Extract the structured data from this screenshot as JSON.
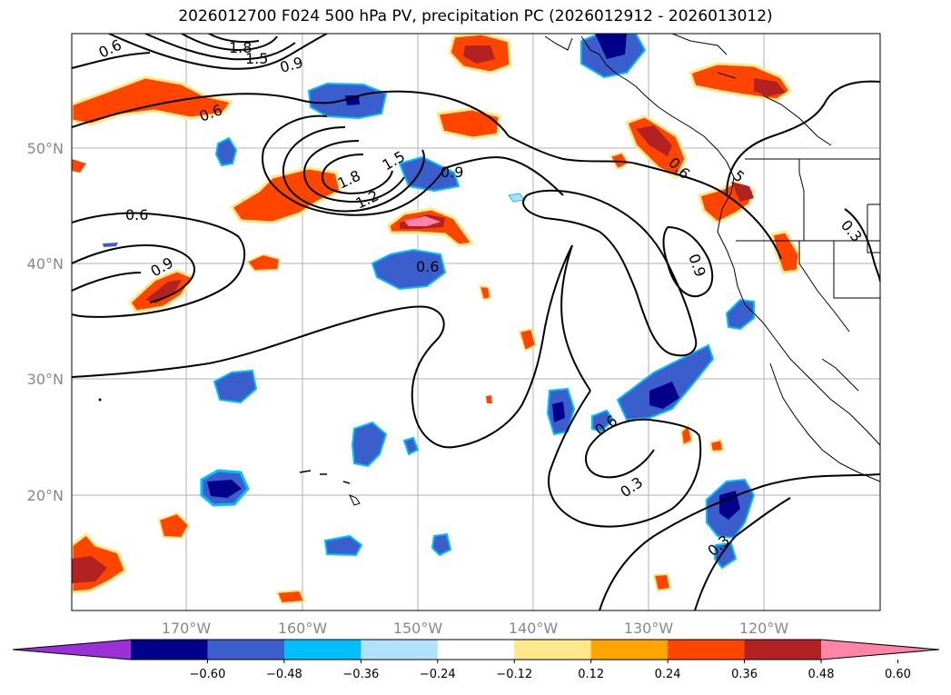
{
  "title": "2026012700 F024 500 hPa PV, precipitation PC (2026012912 - 2026013012)",
  "lat_labels": [
    "50°N",
    "40°N",
    "30°N",
    "20°N"
  ],
  "lon_labels": [
    "170°W",
    "160°W",
    "150°W",
    "140°W",
    "130°W",
    "120°W"
  ],
  "colorbar": {
    "ticks": [
      "−0.60",
      "−0.48",
      "−0.36",
      "−0.24",
      "−0.12",
      "0.12",
      "0.24",
      "0.36",
      "0.48",
      "0.60"
    ],
    "colors": [
      "#9b30d9",
      "#00008b",
      "#3a5fcd",
      "#00bfff",
      "#b0e2ff",
      "#ffffff",
      "#ffe88c",
      "#ffa500",
      "#ff4500",
      "#b22222",
      "#ff85a8"
    ]
  },
  "contour_labels": [
    {
      "text": "0.6"
    },
    {
      "text": "1.8"
    },
    {
      "text": "1.5"
    },
    {
      "text": "0.9"
    },
    {
      "text": "0.6"
    },
    {
      "text": "1.5"
    },
    {
      "text": "1.8"
    },
    {
      "text": "0.9"
    },
    {
      "text": "1.2"
    },
    {
      "text": "0.6"
    },
    {
      "text": "0.9"
    },
    {
      "text": "0.6"
    },
    {
      "text": "0.6"
    },
    {
      "text": "0.9"
    },
    {
      "text": "0.3"
    },
    {
      "text": "0.6"
    },
    {
      "text": "0.3"
    },
    {
      "text": "0.3"
    },
    {
      "text": "5"
    }
  ]
}
